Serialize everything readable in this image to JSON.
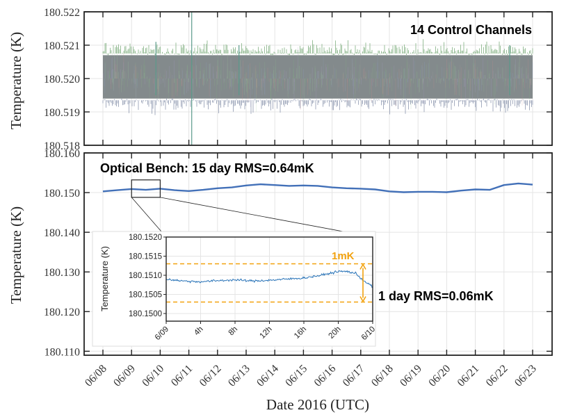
{
  "colors": {
    "control_fill": "#838a8c",
    "bench_line": "#4270b8",
    "inset_line": "#2a74b8",
    "orange": "#f2a20f",
    "grid": "#e4e4e4"
  },
  "chart_data": [
    {
      "type": "line",
      "panel": "top",
      "title": "14 Control Channels",
      "ylabel": "Temperature (K)",
      "ylim": [
        180.518,
        180.522
      ],
      "yticks": [
        "180.518",
        "180.519",
        "180.520",
        "180.521",
        "180.522"
      ],
      "x_range_days": [
        0,
        15
      ],
      "series": [
        {
          "name": "14 Control Channels band",
          "center": 180.52,
          "upper": 180.5207,
          "lower": 180.5194
        }
      ],
      "spikes": [
        {
          "day": 3.1,
          "high": 180.522,
          "low": 180.518
        },
        {
          "day": 1.85,
          "high": 180.5211,
          "low": 180.5195
        },
        {
          "day": 4.75,
          "high": 180.521,
          "low": 180.5195
        },
        {
          "day": 14.2,
          "high": 180.521,
          "low": 180.5195
        }
      ]
    },
    {
      "type": "line",
      "panel": "bottom",
      "title": "Optical Bench: 15 day RMS=0.64mK",
      "ylabel": "Temperature (K)",
      "xlabel": "Date 2016 (UTC)",
      "ylim": [
        180.109,
        180.16
      ],
      "yticks": [
        "180.110",
        "180.120",
        "180.130",
        "180.140",
        "180.150",
        "180.160"
      ],
      "categories": [
        "06/08",
        "06/09",
        "06/10",
        "06/11",
        "06/12",
        "06/13",
        "06/14",
        "06/15",
        "06/16",
        "06/17",
        "06/18",
        "06/19",
        "06/20",
        "06/21",
        "06/22",
        "06/23"
      ],
      "series": [
        {
          "name": "Optical Bench",
          "x": [
            0,
            0.5,
            1,
            1.5,
            2,
            2.5,
            3,
            3.5,
            4,
            4.5,
            5,
            5.5,
            6,
            6.5,
            7,
            7.5,
            8,
            8.5,
            9,
            9.5,
            10,
            10.5,
            11,
            11.5,
            12,
            12.5,
            13,
            13.5,
            14,
            14.5,
            15
          ],
          "y": [
            180.1503,
            180.1506,
            180.1509,
            180.1507,
            180.151,
            180.1506,
            180.1504,
            180.1507,
            180.1511,
            180.1513,
            180.1518,
            180.1521,
            180.1519,
            180.1517,
            180.1518,
            180.1517,
            180.1513,
            180.1511,
            180.151,
            180.1508,
            180.1503,
            180.1501,
            180.1502,
            180.1502,
            180.1501,
            180.1505,
            180.1508,
            180.1507,
            180.1519,
            180.1523,
            180.152
          ]
        }
      ],
      "zoom_box": {
        "x_start_day": 1,
        "x_end_day": 2,
        "y_low": 180.1488,
        "y_high": 180.1532
      }
    },
    {
      "type": "line",
      "panel": "inset",
      "ylabel": "Temperature (K)",
      "ylim": [
        180.1498,
        180.152
      ],
      "yticks": [
        "180.1500",
        "180.1505",
        "180.1510",
        "180.1515",
        "180.1520"
      ],
      "x_range_hours": [
        0,
        24
      ],
      "xticks": [
        "6/09",
        "4h",
        "8h",
        "12h",
        "16h",
        "20h",
        "6/10"
      ],
      "series": [
        {
          "name": "Optical Bench 1 day",
          "x": [
            0,
            2,
            4,
            6,
            8,
            10,
            12,
            14,
            16,
            18,
            20,
            21,
            22,
            23,
            24
          ],
          "y": [
            180.1509,
            180.15085,
            180.15083,
            180.15086,
            180.15088,
            180.15085,
            180.15087,
            180.1509,
            180.15093,
            180.151,
            180.1511,
            180.1511,
            180.15105,
            180.15085,
            180.1507
          ]
        }
      ],
      "bounds": [
        180.1503,
        180.1513
      ],
      "annotations": {
        "span_label": "1mK",
        "rms_label": "1 day RMS=0.06mK"
      }
    }
  ]
}
